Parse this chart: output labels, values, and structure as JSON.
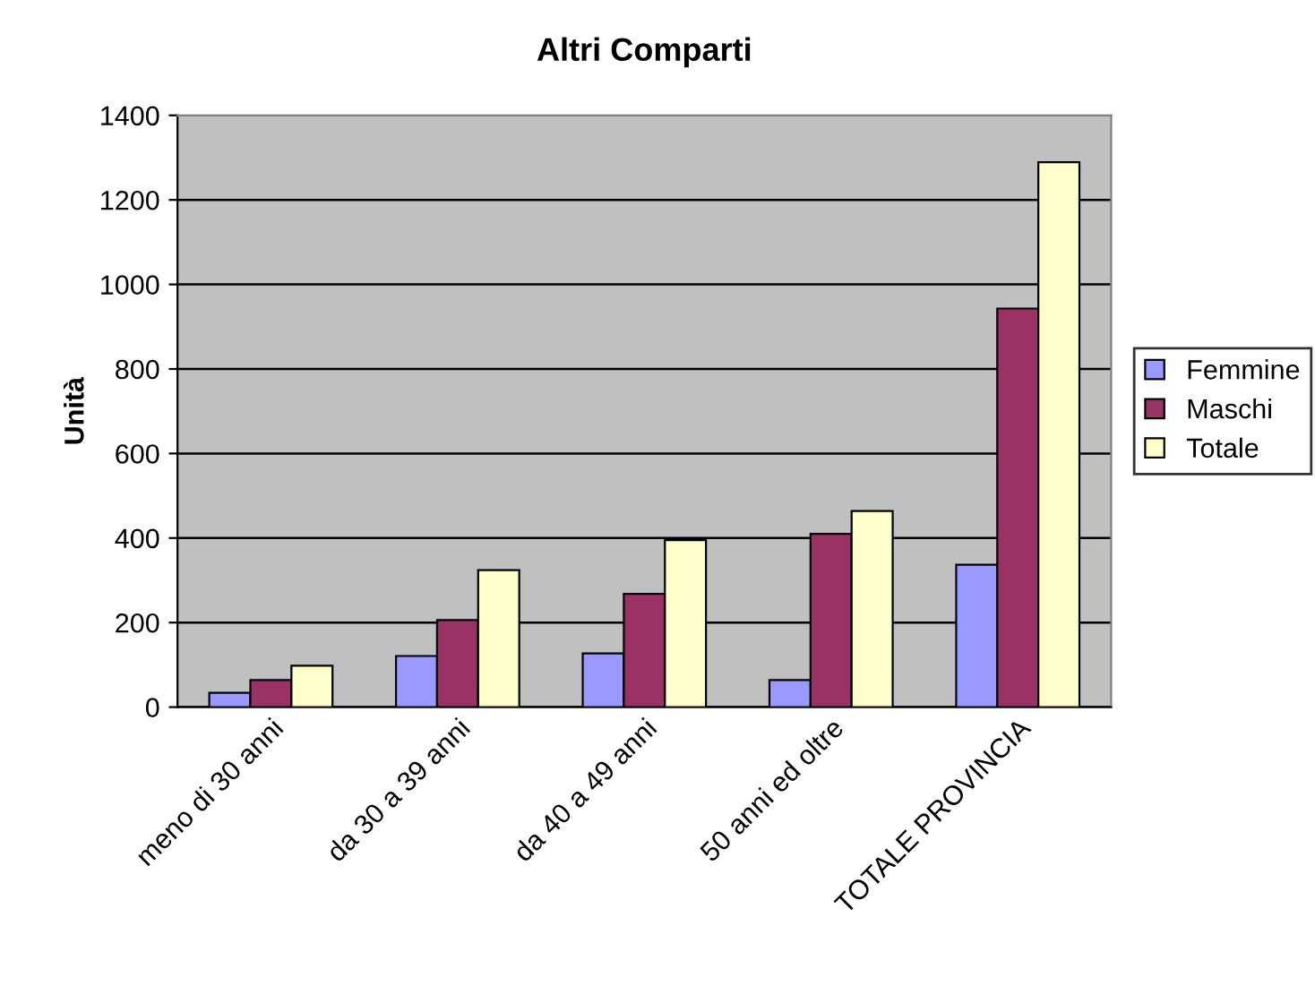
{
  "chart_data": {
    "type": "bar",
    "title": "Altri Comparti",
    "ylabel": "Unità",
    "categories": [
      "meno di 30 anni",
      "da 30 a 39 anni",
      "da 40 a 49 anni",
      "50 anni ed oltre",
      "TOTALE PROVINCIA"
    ],
    "series": [
      {
        "name": "Femmine",
        "color": "#9999ff",
        "values": [
          34,
          121,
          127,
          64,
          337
        ]
      },
      {
        "name": "Maschi",
        "color": "#993366",
        "values": [
          64,
          206,
          268,
          410,
          943
        ]
      },
      {
        "name": "Totale",
        "color": "#ffffcc",
        "values": [
          98,
          324,
          395,
          464,
          1289
        ]
      }
    ],
    "ylim": [
      0,
      1400
    ],
    "yticks": [
      0,
      200,
      400,
      600,
      800,
      1000,
      1200,
      1400
    ],
    "grid": "y",
    "legend": "right"
  }
}
